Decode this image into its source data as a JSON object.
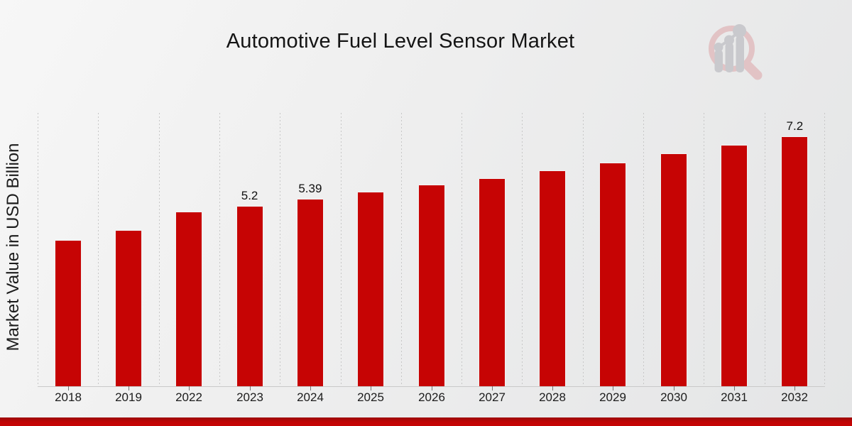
{
  "page": {
    "title": "Automotive Fuel Level Sensor Market"
  },
  "branding": {
    "logo_icon": "magnifier-bar-chart-logo"
  },
  "chart_data": {
    "type": "bar",
    "title": "Automotive Fuel Level Sensor Market",
    "ylabel": "Market Value in USD Billion",
    "xlabel": "",
    "categories": [
      "2018",
      "2019",
      "2022",
      "2023",
      "2024",
      "2025",
      "2026",
      "2027",
      "2028",
      "2029",
      "2030",
      "2031",
      "2032"
    ],
    "values": [
      4.2,
      4.5,
      5.02,
      5.2,
      5.39,
      5.6,
      5.8,
      6.0,
      6.22,
      6.45,
      6.7,
      6.95,
      7.2
    ],
    "point_labels": {
      "2023": "5.2",
      "2024": "5.39",
      "2032": "7.2"
    },
    "ylim": [
      0,
      7.9
    ],
    "grid": "vertical-dotted",
    "legend": "none",
    "series_name": "Market Value"
  },
  "colors": {
    "bar": "#c60404",
    "grid": "#c7c7c7",
    "axis": "#c9c9c9",
    "text": "#1c1c1c",
    "ribbon_top": "#9c0909",
    "ribbon": "#c40404",
    "logo_pink": "#e2c3c5",
    "logo_gray": "#c9c9cd"
  }
}
